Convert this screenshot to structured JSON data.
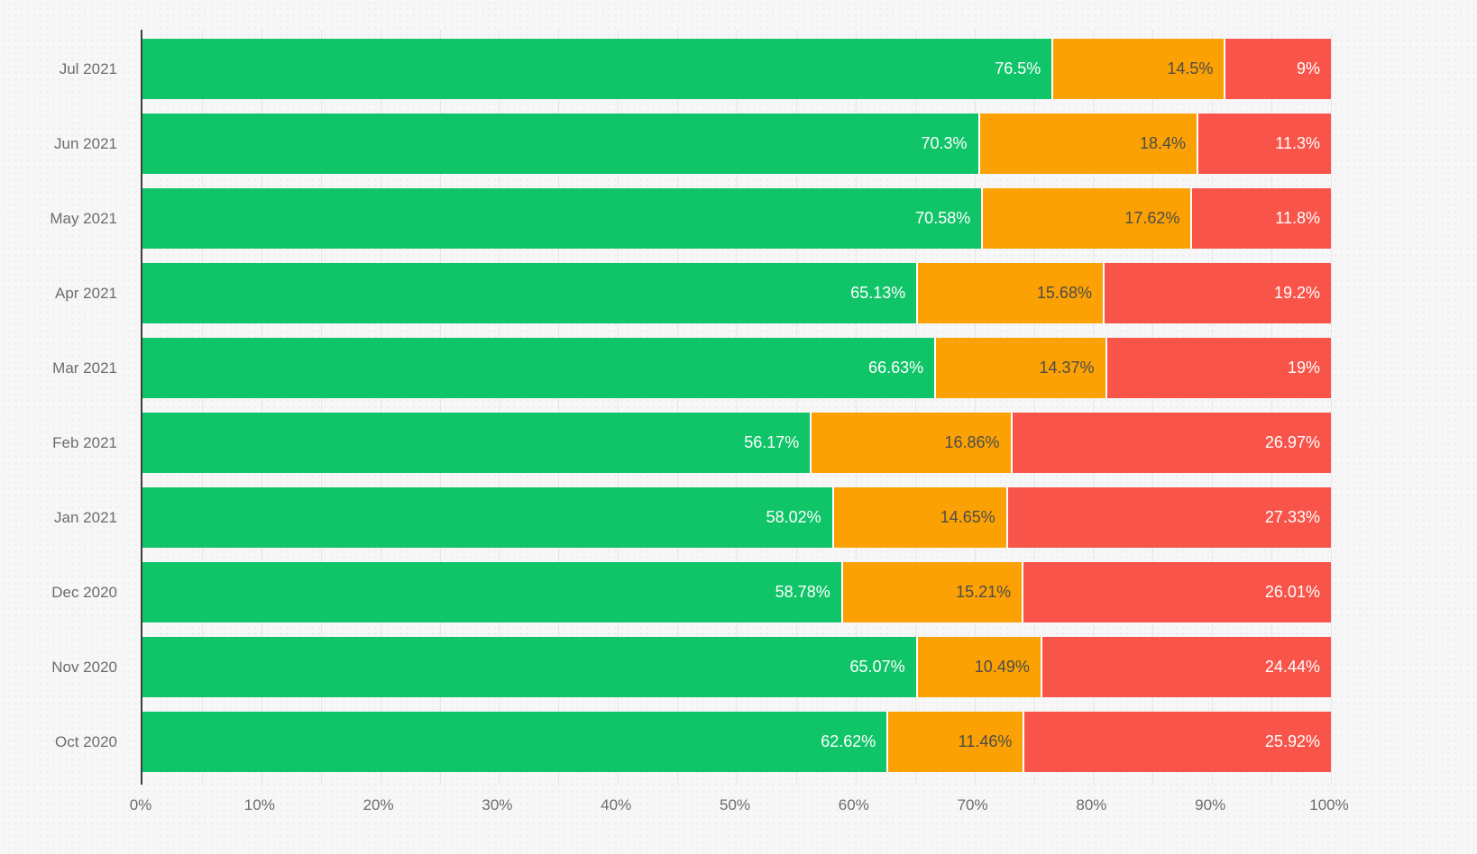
{
  "background": {
    "color": "#f7f7f8",
    "dot_color": "#ebebeb"
  },
  "axis": {
    "line_color": "#3e3e3e",
    "label_color": "#6c6c6c",
    "grid_color": "#e6e6e6",
    "grid_step_pct": 5,
    "x_ticks": [
      "0%",
      "10%",
      "20%",
      "30%",
      "40%",
      "50%",
      "60%",
      "70%",
      "80%",
      "90%",
      "100%"
    ]
  },
  "chart_data": {
    "type": "bar",
    "orientation": "horizontal",
    "stacked": true,
    "title": "",
    "xlabel": "",
    "ylabel": "",
    "xlim": [
      0,
      100
    ],
    "grid": true,
    "legend": "none",
    "categories": [
      "Jul 2021",
      "Jun 2021",
      "May 2021",
      "Apr 2021",
      "Mar 2021",
      "Feb 2021",
      "Jan 2021",
      "Dec 2020",
      "Nov 2020",
      "Oct 2020"
    ],
    "series": [
      {
        "name": "green",
        "color": "#10c468",
        "label_color": "#ffffff",
        "values": [
          76.5,
          70.3,
          70.58,
          65.13,
          66.63,
          56.17,
          58.02,
          58.78,
          65.07,
          62.62
        ],
        "labels": [
          "76.5%",
          "70.3%",
          "70.58%",
          "65.13%",
          "66.63%",
          "56.17%",
          "58.02%",
          "58.78%",
          "65.07%",
          "62.62%"
        ]
      },
      {
        "name": "orange",
        "color": "#fba103",
        "label_color": "#4c4c4c",
        "values": [
          14.5,
          18.4,
          17.62,
          15.68,
          14.37,
          16.86,
          14.65,
          15.21,
          10.49,
          11.46
        ],
        "labels": [
          "14.5%",
          "18.4%",
          "17.62%",
          "15.68%",
          "14.37%",
          "16.86%",
          "14.65%",
          "15.21%",
          "10.49%",
          "11.46%"
        ]
      },
      {
        "name": "red",
        "color": "#f8544a",
        "label_color": "#ffffff",
        "values": [
          9,
          11.3,
          11.8,
          19.2,
          19,
          26.97,
          27.33,
          26.01,
          24.44,
          25.92
        ],
        "labels": [
          "9%",
          "11.3%",
          "11.8%",
          "19.2%",
          "19%",
          "26.97%",
          "27.33%",
          "26.01%",
          "24.44%",
          "25.92%"
        ]
      }
    ]
  }
}
